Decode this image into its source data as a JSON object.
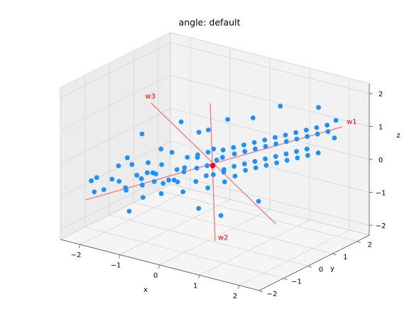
{
  "chart_data": {
    "type": "scatter",
    "projection": "3d",
    "title": "angle: default",
    "xlabel": "x",
    "ylabel": "y",
    "zlabel": "z",
    "xlim": [
      -2.5,
      2.5
    ],
    "ylim": [
      -2.0,
      2.5
    ],
    "zlim": [
      -2.3,
      2.3
    ],
    "x_ticks": [
      -2,
      -1,
      0,
      1,
      2
    ],
    "y_ticks": [
      -2,
      -1,
      0,
      1,
      2
    ],
    "z_ticks": [
      -2,
      -1,
      0,
      1,
      2
    ],
    "x_tick_labels": [
      "−2",
      "−1",
      "0",
      "1",
      "2"
    ],
    "y_tick_labels": [
      "−2",
      "−1",
      "0",
      "1",
      "2"
    ],
    "z_tick_labels": [
      "−2",
      "−1",
      "0",
      "1",
      "2"
    ],
    "grid": true,
    "colors": {
      "points": "#1e90ff",
      "center": "#ff0000",
      "axes_lines": "#f08080",
      "axis_labels": "#ff0000",
      "pane_left": "#ececec",
      "pane_back": "#f2f2f2",
      "pane_floor": "#f5f5f5"
    },
    "center": [
      0.1,
      0.0,
      0.0
    ],
    "principal_axes": [
      {
        "name": "w1",
        "from": [
          -2.3,
          -1.3,
          -1.3
        ],
        "to": [
          2.5,
          1.4,
          1.4
        ]
      },
      {
        "name": "w2",
        "from": [
          -0.7,
          1.2,
          1.2
        ],
        "to": [
          0.9,
          -1.2,
          -1.6
        ]
      },
      {
        "name": "w3",
        "from": [
          -1.7,
          0.4,
          1.2
        ],
        "to": [
          2.0,
          -0.5,
          -1.0
        ]
      }
    ],
    "points": [
      [
        -2.4,
        -0.9,
        -0.9
      ],
      [
        -2.2,
        -1.0,
        -0.7
      ],
      [
        -2.2,
        -1.1,
        -1.1
      ],
      [
        -2.0,
        -0.7,
        -0.8
      ],
      [
        -1.9,
        -0.6,
        -0.4
      ],
      [
        -1.9,
        -1.2,
        -0.9
      ],
      [
        -1.8,
        -0.4,
        -0.2
      ],
      [
        -1.7,
        -0.9,
        -0.7
      ],
      [
        -1.6,
        -0.8,
        -0.9
      ],
      [
        -1.5,
        -0.5,
        -0.6
      ],
      [
        -1.5,
        -0.7,
        -0.2
      ],
      [
        -1.4,
        -1.1,
        -0.8
      ],
      [
        -1.4,
        -0.2,
        -0.3
      ],
      [
        -1.3,
        -0.4,
        -0.5
      ],
      [
        -1.3,
        -0.6,
        -0.8
      ],
      [
        -1.2,
        -0.8,
        -0.5
      ],
      [
        -1.2,
        0.0,
        0.1
      ],
      [
        -1.1,
        -0.5,
        -0.4
      ],
      [
        -1.1,
        -0.9,
        -1.0
      ],
      [
        -1.0,
        -0.3,
        -0.2
      ],
      [
        -1.0,
        -0.6,
        -0.6
      ],
      [
        -0.9,
        -0.4,
        -0.7
      ],
      [
        -0.9,
        -0.7,
        -0.3
      ],
      [
        -0.8,
        0.0,
        -0.4
      ],
      [
        -0.8,
        -0.2,
        0.2
      ],
      [
        -0.7,
        -0.5,
        -0.5
      ],
      [
        -0.7,
        -0.8,
        -0.8
      ],
      [
        -0.6,
        0.1,
        0.0
      ],
      [
        -0.6,
        -0.3,
        -0.6
      ],
      [
        -0.5,
        -0.2,
        -0.3
      ],
      [
        -0.5,
        -0.6,
        -0.4
      ],
      [
        -0.4,
        0.2,
        0.1
      ],
      [
        -0.4,
        -0.4,
        -0.8
      ],
      [
        -0.3,
        0.0,
        -0.2
      ],
      [
        -0.3,
        -0.5,
        0.0
      ],
      [
        -0.2,
        0.3,
        0.2
      ],
      [
        -0.2,
        -0.2,
        -0.5
      ],
      [
        -0.1,
        0.1,
        -0.1
      ],
      [
        -0.1,
        -0.3,
        0.3
      ],
      [
        0.0,
        0.2,
        0.4
      ],
      [
        0.0,
        -0.1,
        -0.3
      ],
      [
        0.1,
        0.4,
        0.1
      ],
      [
        0.1,
        -0.2,
        -0.6
      ],
      [
        0.2,
        0.0,
        0.2
      ],
      [
        0.2,
        0.3,
        -0.2
      ],
      [
        0.3,
        0.1,
        0.5
      ],
      [
        0.3,
        -0.3,
        -0.1
      ],
      [
        0.4,
        0.4,
        0.3
      ],
      [
        0.4,
        0.0,
        -0.4
      ],
      [
        0.5,
        0.2,
        0.6
      ],
      [
        0.5,
        -0.2,
        0.0
      ],
      [
        0.6,
        0.5,
        0.4
      ],
      [
        0.6,
        0.1,
        -0.2
      ],
      [
        0.7,
        0.3,
        0.7
      ],
      [
        0.7,
        -0.1,
        0.2
      ],
      [
        0.8,
        0.6,
        0.5
      ],
      [
        0.8,
        0.2,
        0.0
      ],
      [
        0.9,
        0.4,
        0.8
      ],
      [
        0.9,
        0.0,
        0.3
      ],
      [
        1.0,
        0.7,
        0.6
      ],
      [
        1.0,
        0.3,
        0.1
      ],
      [
        1.1,
        0.5,
        0.9
      ],
      [
        1.1,
        0.1,
        0.4
      ],
      [
        1.2,
        0.8,
        0.7
      ],
      [
        1.2,
        0.4,
        0.2
      ],
      [
        1.3,
        0.6,
        1.0
      ],
      [
        1.3,
        0.2,
        0.5
      ],
      [
        1.4,
        0.9,
        0.8
      ],
      [
        1.4,
        0.5,
        0.3
      ],
      [
        1.5,
        0.7,
        1.1
      ],
      [
        1.5,
        0.3,
        0.6
      ],
      [
        1.6,
        1.0,
        0.9
      ],
      [
        1.6,
        0.6,
        0.4
      ],
      [
        1.7,
        0.8,
        1.2
      ],
      [
        1.7,
        0.4,
        0.7
      ],
      [
        1.8,
        1.1,
        1.0
      ],
      [
        1.8,
        0.7,
        0.5
      ],
      [
        1.9,
        0.9,
        1.3
      ],
      [
        1.9,
        0.5,
        0.8
      ],
      [
        2.0,
        1.2,
        1.1
      ],
      [
        2.0,
        0.8,
        0.6
      ],
      [
        2.1,
        1.0,
        1.4
      ],
      [
        2.1,
        0.6,
        0.9
      ],
      [
        2.2,
        1.3,
        1.2
      ],
      [
        2.2,
        0.9,
        0.7
      ],
      [
        2.3,
        1.1,
        1.5
      ],
      [
        2.3,
        1.4,
        1.0
      ],
      [
        -1.0,
        0.5,
        0.8
      ],
      [
        -0.5,
        0.8,
        0.6
      ],
      [
        0.5,
        1.0,
        1.2
      ],
      [
        0.8,
        -0.8,
        -1.0
      ],
      [
        -1.8,
        0.2,
        0.3
      ],
      [
        1.5,
        -0.4,
        -0.5
      ],
      [
        -0.2,
        1.1,
        0.9
      ],
      [
        1.0,
        1.3,
        1.6
      ],
      [
        -1.2,
        -1.3,
        -1.3
      ],
      [
        0.3,
        -0.9,
        -0.9
      ],
      [
        1.9,
        1.4,
        1.8
      ],
      [
        2.4,
        1.3,
        1.6
      ],
      [
        -0.8,
        0.9,
        0.4
      ]
    ]
  }
}
